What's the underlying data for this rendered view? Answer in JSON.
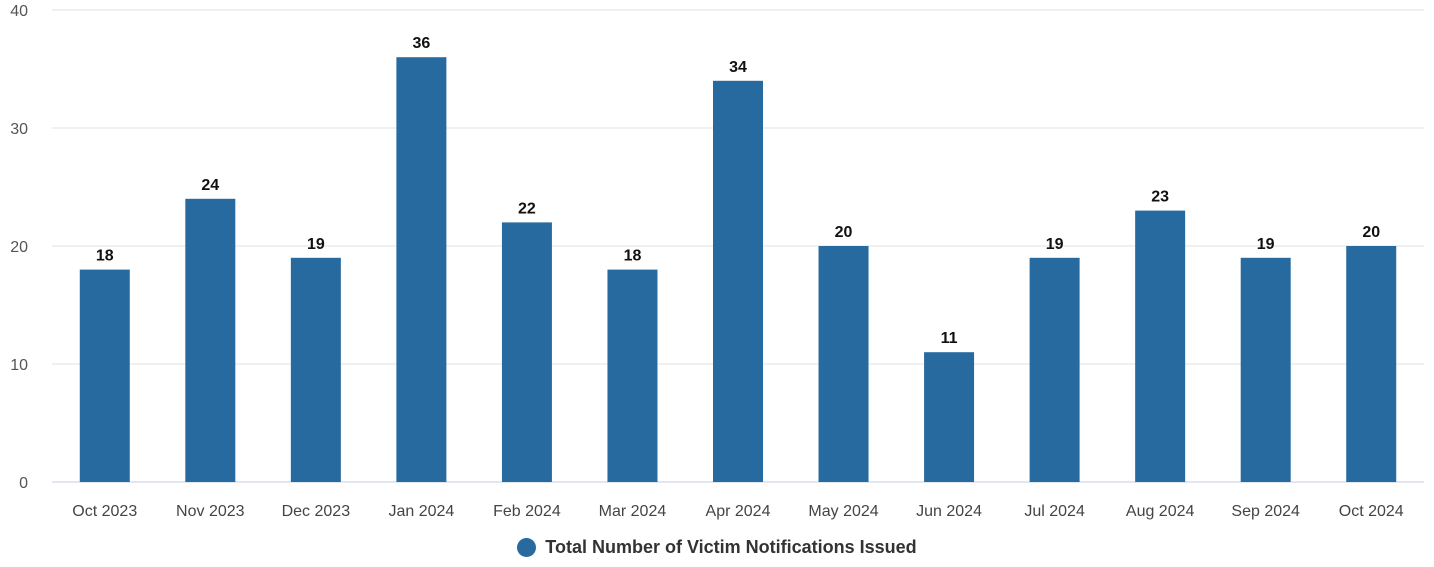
{
  "chart_data": {
    "type": "bar",
    "categories": [
      "Oct 2023",
      "Nov 2023",
      "Dec 2023",
      "Jan 2024",
      "Feb 2024",
      "Mar 2024",
      "Apr 2024",
      "May 2024",
      "Jun 2024",
      "Jul 2024",
      "Aug 2024",
      "Sep 2024",
      "Oct 2024"
    ],
    "series": [
      {
        "name": "Total Number of Victim Notifications Issued",
        "values": [
          18,
          24,
          19,
          36,
          22,
          18,
          34,
          20,
          11,
          19,
          23,
          19,
          20
        ],
        "color": "#276a9f"
      }
    ],
    "y_ticks": [
      0,
      10,
      20,
      30,
      40
    ],
    "ylim": [
      0,
      40
    ],
    "grid": true,
    "legend_position": "bottom-center",
    "data_labels": true
  }
}
